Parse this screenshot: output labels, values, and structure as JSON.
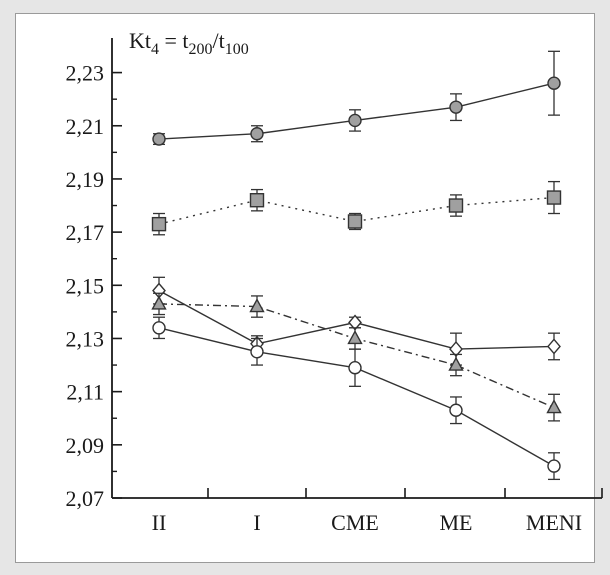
{
  "chart_data": {
    "type": "line",
    "title_parts": {
      "prefix": "Kt",
      "prefix_sub": "4",
      "eq": " = t",
      "num_sub": "200",
      "slash": "/t",
      "den_sub": "100"
    },
    "categories": [
      "II",
      "I",
      "CME",
      "ME",
      "MENI"
    ],
    "ylim": [
      2.07,
      2.24
    ],
    "yticks": [
      "2,07",
      "2,09",
      "2,11",
      "2,13",
      "2,15",
      "2,17",
      "2,19",
      "2,21",
      "2,23"
    ],
    "ytick_values": [
      2.07,
      2.09,
      2.11,
      2.13,
      2.15,
      2.17,
      2.19,
      2.21,
      2.23
    ],
    "series": [
      {
        "marker": "circle",
        "fill": "#a0a0a0",
        "dash": "solid",
        "values": [
          2.205,
          2.207,
          2.212,
          2.217,
          2.226
        ],
        "errors": [
          0.002,
          0.003,
          0.004,
          0.005,
          0.012
        ]
      },
      {
        "marker": "square",
        "fill": "#a0a0a0",
        "dash": "dotted",
        "values": [
          2.173,
          2.182,
          2.174,
          2.18,
          2.183
        ],
        "errors": [
          0.004,
          0.004,
          0.003,
          0.004,
          0.006
        ]
      },
      {
        "marker": "diamond",
        "fill": "#ffffff",
        "dash": "solid",
        "values": [
          2.148,
          2.128,
          2.136,
          2.126,
          2.127
        ],
        "errors": [
          0.005,
          0.003,
          0.002,
          0.006,
          0.005
        ]
      },
      {
        "marker": "triangle",
        "fill": "#a0a0a0",
        "dash": "dashdot",
        "values": [
          2.143,
          2.142,
          2.13,
          2.12,
          2.104
        ],
        "errors": [
          0.004,
          0.004,
          0.004,
          0.004,
          0.005
        ]
      },
      {
        "marker": "circle",
        "fill": "#ffffff",
        "dash": "solid",
        "values": [
          2.134,
          2.125,
          2.119,
          2.103,
          2.082
        ],
        "errors": [
          0.004,
          0.005,
          0.007,
          0.005,
          0.005
        ]
      }
    ]
  }
}
